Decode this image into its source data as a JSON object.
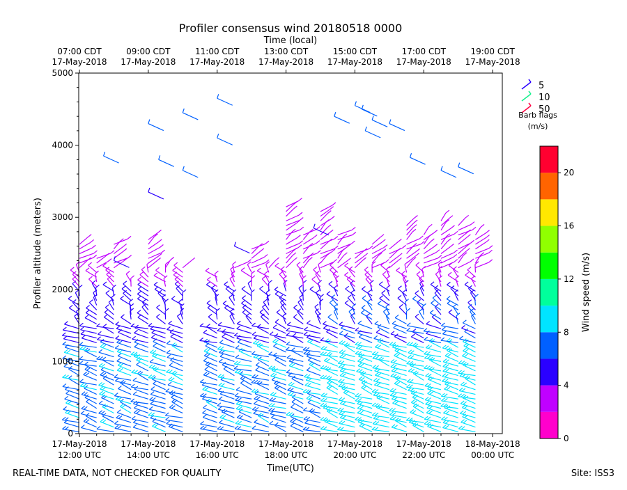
{
  "chart_data": {
    "type": "wind-barb-profile",
    "title": "Profiler consensus wind 20180518 0000",
    "top_axis_label": "Time (local)",
    "xlabel": "Time(UTC)",
    "ylabel": "Profiler altitude (meters)",
    "x_range_hours": [
      11.98,
      24.28
    ],
    "ylim": [
      0,
      5000
    ],
    "y_ticks": [
      0,
      1000,
      2000,
      3000,
      4000,
      5000
    ],
    "bottom_ticks": [
      {
        "hour": 12,
        "date": "17-May-2018",
        "time": "12:00 UTC"
      },
      {
        "hour": 14,
        "date": "17-May-2018",
        "time": "14:00 UTC"
      },
      {
        "hour": 16,
        "date": "17-May-2018",
        "time": "16:00 UTC"
      },
      {
        "hour": 18,
        "date": "17-May-2018",
        "time": "18:00 UTC"
      },
      {
        "hour": 20,
        "date": "17-May-2018",
        "time": "20:00 UTC"
      },
      {
        "hour": 22,
        "date": "17-May-2018",
        "time": "22:00 UTC"
      },
      {
        "hour": 24,
        "date": "18-May-2018",
        "time": "00:00 UTC"
      }
    ],
    "top_ticks": [
      {
        "hour": 12,
        "time": "07:00 CDT",
        "date": "17-May-2018"
      },
      {
        "hour": 14,
        "time": "09:00 CDT",
        "date": "17-May-2018"
      },
      {
        "hour": 16,
        "time": "11:00 CDT",
        "date": "17-May-2018"
      },
      {
        "hour": 18,
        "time": "13:00 CDT",
        "date": "17-May-2018"
      },
      {
        "hour": 20,
        "time": "15:00 CDT",
        "date": "17-May-2018"
      },
      {
        "hour": 22,
        "time": "17:00 CDT",
        "date": "17-May-2018"
      },
      {
        "hour": 24,
        "time": "19:00 CDT",
        "date": "17-May-2018"
      }
    ],
    "barb_flags": {
      "title": "Barb flags",
      "units": "(m/s)",
      "entries": [
        {
          "value": "5",
          "color": "#2a00ff"
        },
        {
          "value": "10",
          "color": "#14f08c"
        },
        {
          "value": "50",
          "color": "#ff0040"
        }
      ]
    },
    "colorbar": {
      "label": "Wind speed (m/s)",
      "min": 0,
      "max": 22,
      "ticks": [
        0,
        4,
        8,
        12,
        16,
        20
      ],
      "colors": [
        "#ff00cc",
        "#c000ff",
        "#2a00ff",
        "#0060ff",
        "#00e4ff",
        "#00ff9c",
        "#00ff00",
        "#90ff00",
        "#ffe800",
        "#ff6400",
        "#ff0030"
      ]
    },
    "profile_times_hours": [
      12.0,
      12.5,
      13.0,
      13.5,
      14.0,
      14.5,
      15.0,
      16.0,
      16.5,
      17.0,
      17.5,
      18.0,
      18.5,
      19.0,
      19.5,
      20.0,
      20.5,
      21.0,
      21.5,
      22.0,
      22.5,
      23.0,
      23.5
    ],
    "speed_profile_ms": [
      {
        "alt_range_m": [
          0,
          1200
        ],
        "speed_ms": 7.5
      },
      {
        "alt_range_m": [
          1200,
          2000
        ],
        "speed_ms": 5.0
      },
      {
        "alt_range_m": [
          2000,
          3200
        ],
        "speed_ms": 3.0
      },
      {
        "alt_range_m": [
          3200,
          5000
        ],
        "speed_ms": 6.5
      }
    ]
  },
  "footer": {
    "left": "REAL-TIME DATA, NOT CHECKED FOR QUALITY",
    "right": "Site: ISS3"
  }
}
